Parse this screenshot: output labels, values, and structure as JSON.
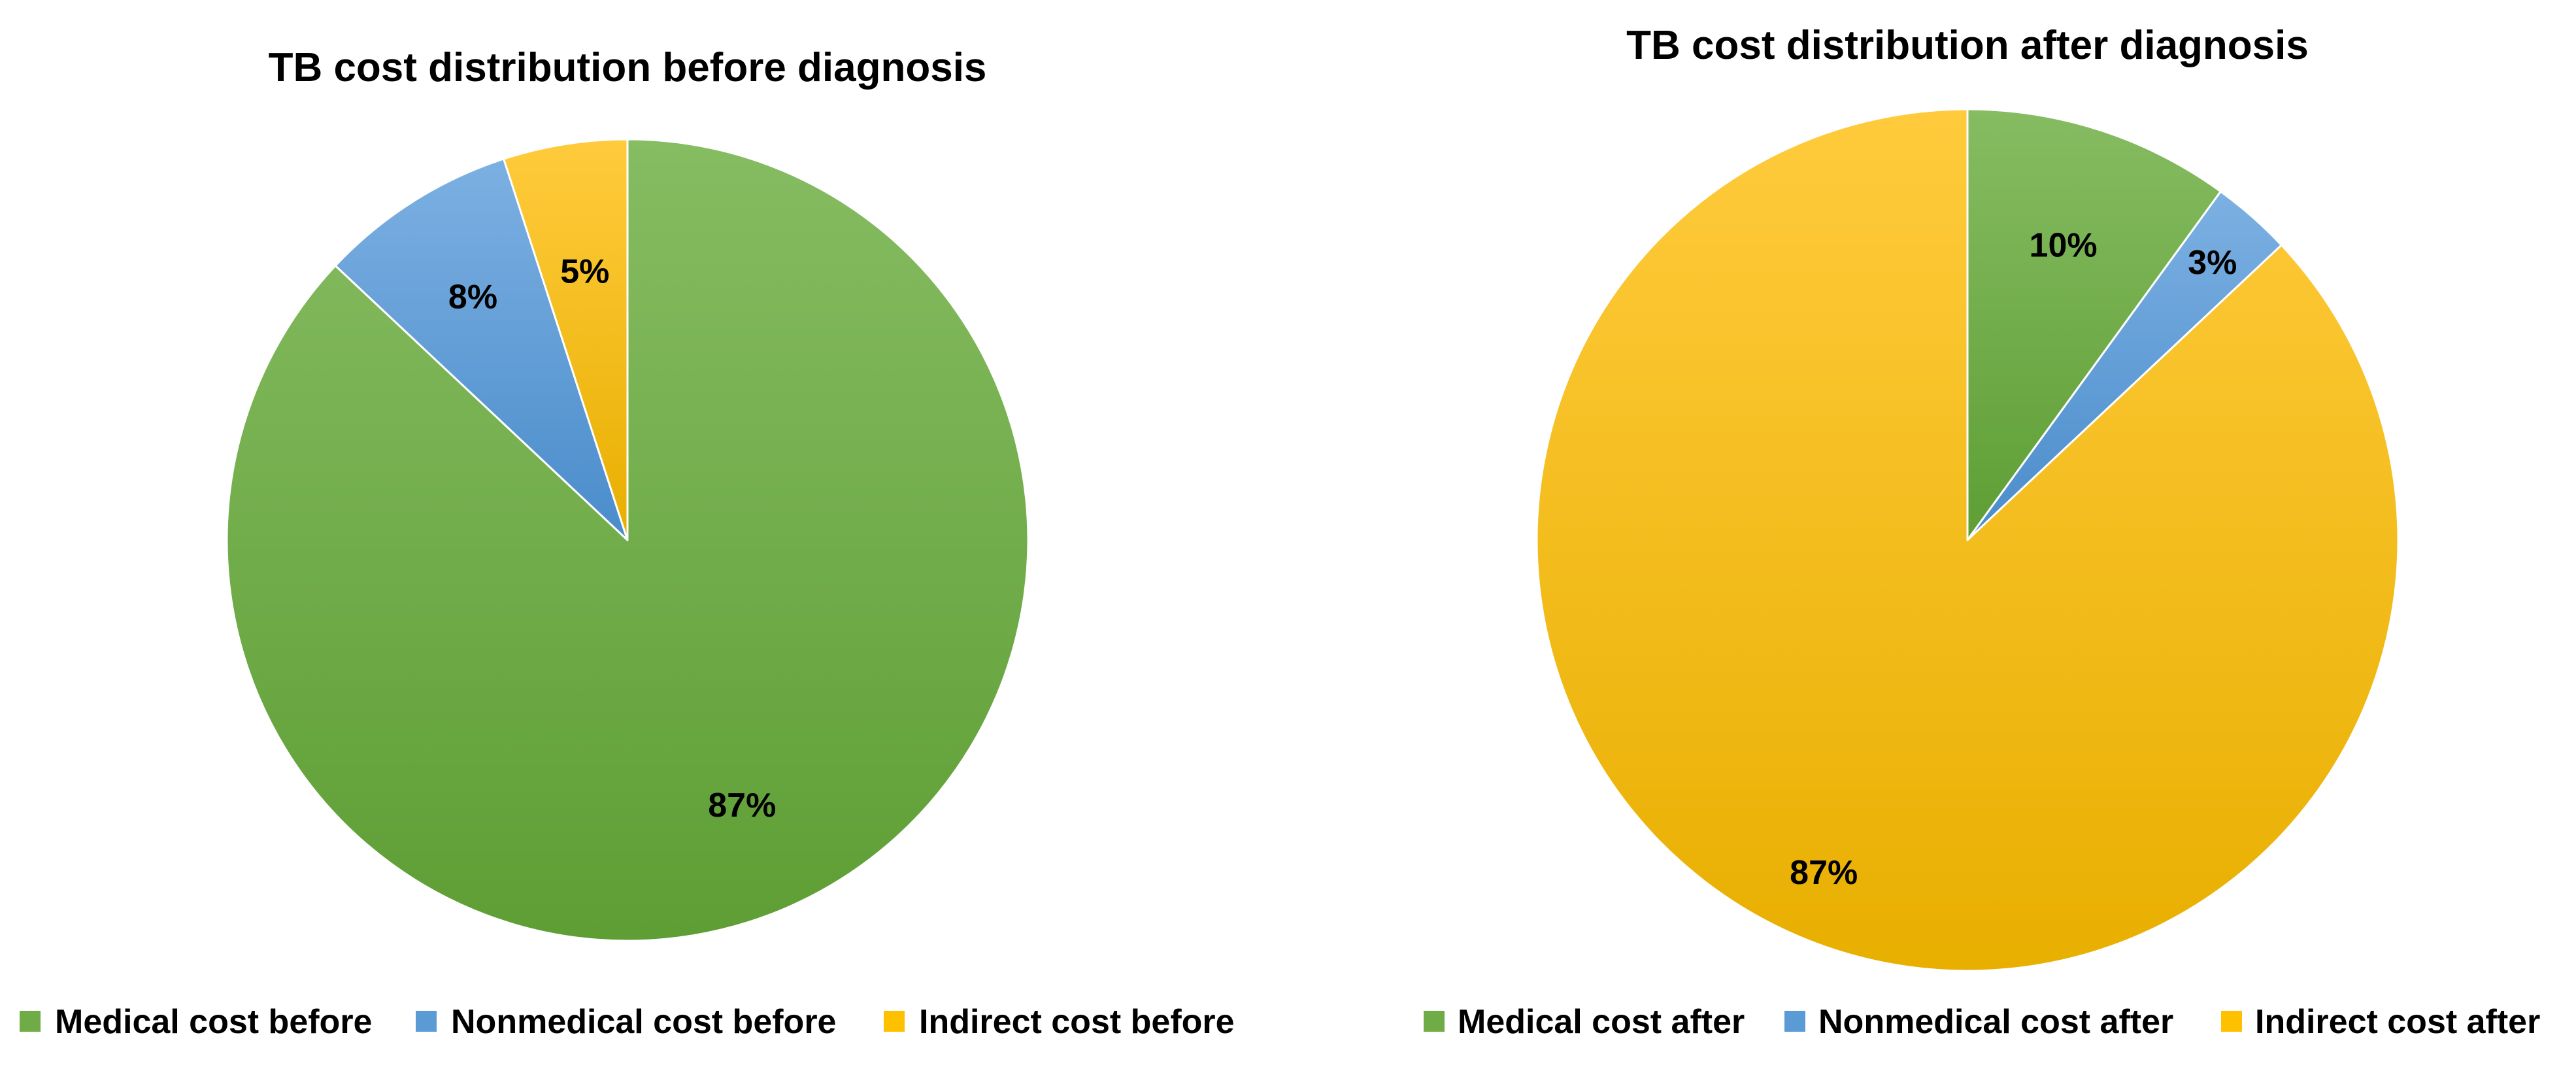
{
  "chart_data": [
    {
      "type": "pie",
      "title": "TB cost distribution before diagnosis",
      "categories": [
        "Medical cost before",
        "Nonmedical cost before",
        "Indirect cost before"
      ],
      "values": [
        87,
        8,
        5
      ],
      "labels": [
        "87%",
        "8%",
        "5%"
      ],
      "colors": [
        "#6FAC46",
        "#5B9BD5",
        "#FFC000"
      ],
      "start_angle_deg": 0,
      "direction": "clockwise",
      "legend_position": "bottom"
    },
    {
      "type": "pie",
      "title": "TB cost distribution after diagnosis",
      "categories": [
        "Medical cost after",
        "Nonmedical cost after",
        "Indirect cost after"
      ],
      "values": [
        10,
        3,
        87
      ],
      "labels": [
        "10%",
        "3%",
        "87%"
      ],
      "colors": [
        "#6FAC46",
        "#5B9BD5",
        "#FFC000"
      ],
      "start_angle_deg": 0,
      "direction": "clockwise",
      "legend_position": "bottom"
    }
  ]
}
